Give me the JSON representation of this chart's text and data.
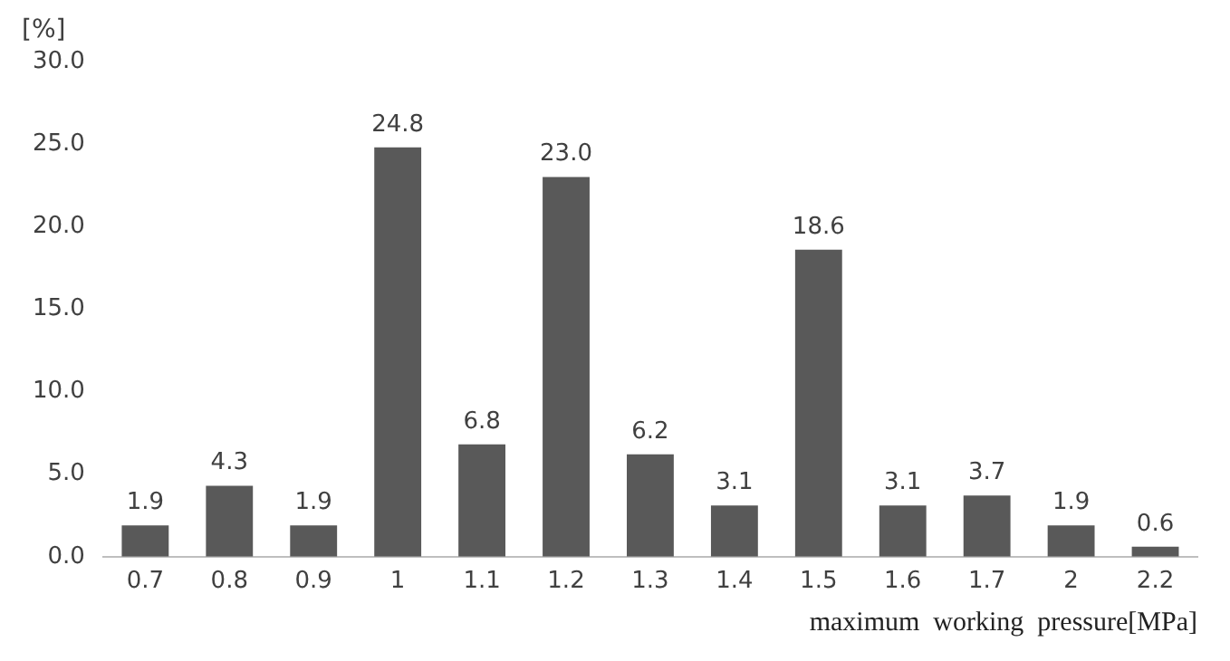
{
  "chart_data": {
    "type": "bar",
    "ylabel": "[%]",
    "xlabel": "maximum  working  pressure[MPa]",
    "categories": [
      "0.7",
      "0.8",
      "0.9",
      "1",
      "1.1",
      "1.2",
      "1.3",
      "1.4",
      "1.5",
      "1.6",
      "1.7",
      "2",
      "2.2"
    ],
    "values": [
      1.9,
      4.3,
      1.9,
      24.8,
      6.8,
      23.0,
      6.2,
      3.1,
      18.6,
      3.1,
      3.7,
      1.9,
      0.6
    ],
    "value_labels": [
      "1.9",
      "4.3",
      "1.9",
      "24.8",
      "6.8",
      "23.0",
      "6.2",
      "3.1",
      "18.6",
      "3.1",
      "3.7",
      "1.9",
      "0.6"
    ],
    "color": "#595959",
    "ylim": [
      0,
      30
    ],
    "yticks": [
      {
        "value": 0,
        "label": "0.0"
      },
      {
        "value": 5,
        "label": "5.0"
      },
      {
        "value": 10,
        "label": "10.0"
      },
      {
        "value": 15,
        "label": "15.0"
      },
      {
        "value": 20,
        "label": "20.0"
      },
      {
        "value": 25,
        "label": "25.0"
      },
      {
        "value": 30,
        "label": "30.0"
      }
    ],
    "grid": false,
    "legend": false
  }
}
